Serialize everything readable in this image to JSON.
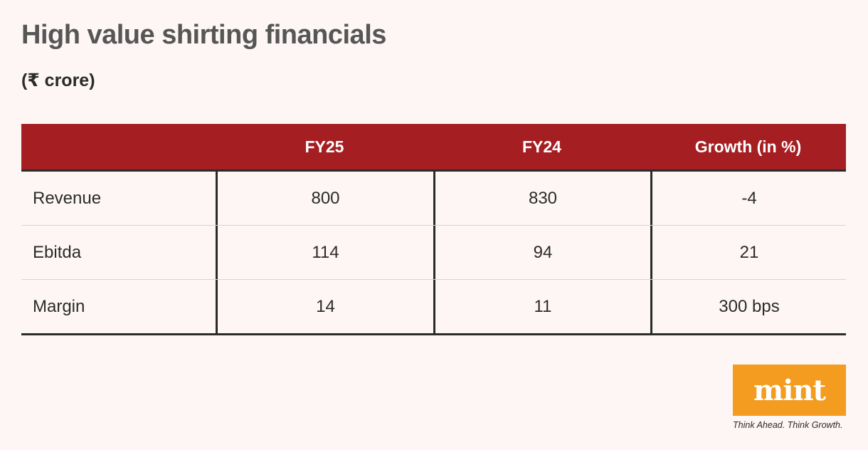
{
  "title": "High value shirting financials",
  "subtitle": "(₹ crore)",
  "header": {
    "col0": "",
    "col1": "FY25",
    "col2": "FY24",
    "col3": "Growth (in %)"
  },
  "rows": [
    {
      "label": "Revenue",
      "fy25": "800",
      "fy24": "830",
      "growth": "-4"
    },
    {
      "label": "Ebitda",
      "fy25": "114",
      "fy24": "94",
      "growth": "21"
    },
    {
      "label": "Margin",
      "fy25": "14",
      "fy24": "11",
      "growth": "300 bps"
    }
  ],
  "logo": {
    "text": "mint",
    "tagline": "Think Ahead. Think Growth."
  },
  "colors": {
    "header_bg": "#a51e22",
    "background": "#fdf6f4",
    "logo_bg": "#f39c1f"
  },
  "chart_data": {
    "type": "table",
    "title": "High value shirting financials",
    "subtitle": "(₹ crore)",
    "columns": [
      "",
      "FY25",
      "FY24",
      "Growth (in %)"
    ],
    "rows": [
      [
        "Revenue",
        "800",
        "830",
        "-4"
      ],
      [
        "Ebitda",
        "114",
        "94",
        "21"
      ],
      [
        "Margin",
        "14",
        "11",
        "300 bps"
      ]
    ]
  }
}
